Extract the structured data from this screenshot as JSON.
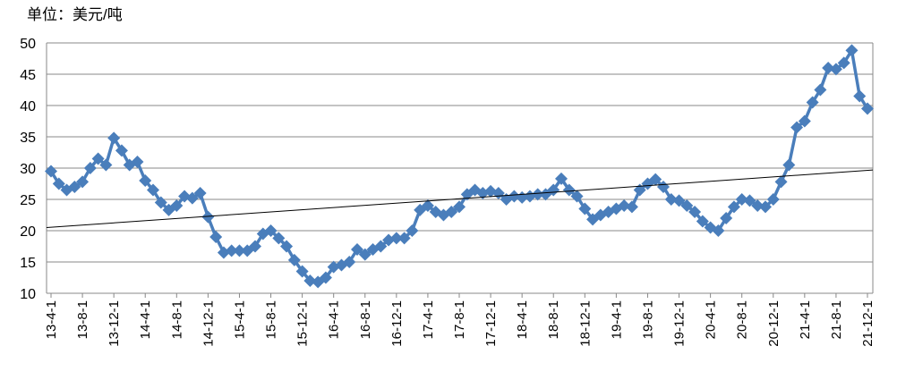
{
  "chart_data": {
    "type": "line",
    "unit_label": "单位：美元/吨",
    "categories": [
      "13-4-1",
      null,
      null,
      null,
      "13-8-1",
      null,
      null,
      null,
      "13-12-1",
      null,
      null,
      null,
      "14-4-1",
      null,
      null,
      null,
      "14-8-1",
      null,
      null,
      null,
      "14-12-1",
      null,
      null,
      null,
      "15-4-1",
      null,
      null,
      null,
      "15-8-1",
      null,
      null,
      null,
      "15-12-1",
      null,
      null,
      null,
      "16-4-1",
      null,
      null,
      null,
      "16-8-1",
      null,
      null,
      null,
      "16-12-1",
      null,
      null,
      null,
      "17-4-1",
      null,
      null,
      null,
      "17-8-1",
      null,
      null,
      null,
      "17-12-1",
      null,
      null,
      null,
      "18-4-1",
      null,
      null,
      null,
      "18-8-1",
      null,
      null,
      null,
      "18-12-1",
      null,
      null,
      null,
      "19-4-1",
      null,
      null,
      null,
      "19-8-1",
      null,
      null,
      null,
      "19-12-1",
      null,
      null,
      null,
      "20-4-1",
      null,
      null,
      null,
      "20-8-1",
      null,
      null,
      null,
      "20-12-1",
      null,
      null,
      null,
      "21-4-1",
      null,
      null,
      null,
      "21-8-1",
      null,
      null,
      null,
      "21-12-1"
    ],
    "series": [
      {
        "color": "#4a7ebb",
        "values": [
          29.5,
          27.5,
          26.5,
          27,
          27.8,
          30,
          31.5,
          30.5,
          34.8,
          32.8,
          30.5,
          31,
          28,
          26.5,
          24.5,
          23.3,
          24,
          25.5,
          25.2,
          26,
          22.2,
          19,
          16.5,
          16.8,
          16.8,
          16.8,
          17.5,
          19.5,
          20,
          18.8,
          17.5,
          15.3,
          13.5,
          12,
          11.8,
          12.5,
          14.2,
          14.5,
          15,
          17,
          16.2,
          17,
          17.5,
          18.5,
          18.8,
          18.8,
          20,
          23.3,
          24,
          23,
          22.5,
          23,
          23.8,
          25.8,
          26.5,
          26,
          26.3,
          26,
          25,
          25.5,
          25.3,
          25.5,
          25.8,
          25.8,
          26.5,
          28.3,
          26.5,
          25.5,
          23.5,
          21.8,
          22.5,
          23,
          23.5,
          24,
          23.8,
          26.5,
          27.5,
          28.2,
          27,
          25,
          24.8,
          24,
          23,
          21.5,
          20.5,
          20,
          22,
          23.8,
          25,
          24.8,
          24,
          23.8,
          25,
          27.8,
          30.5,
          36.5,
          37.5,
          40.5,
          42.5,
          46,
          45.8,
          46.8,
          48.8,
          41.5,
          39.5
        ]
      }
    ],
    "trendline": [
      20.5,
      29.7
    ],
    "trendline_color": "#000000",
    "ylim": [
      10,
      50
    ],
    "yticks": [
      10,
      15,
      20,
      25,
      30,
      35,
      40,
      45,
      50
    ],
    "grid": true
  }
}
